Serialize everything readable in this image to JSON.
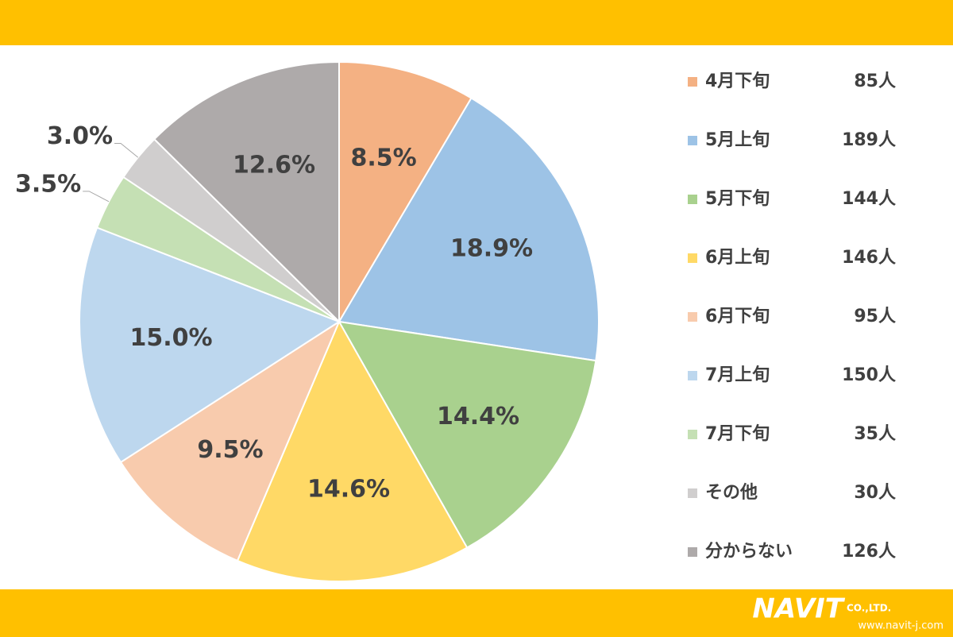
{
  "chart_data": {
    "type": "pie",
    "categories": [
      "4月下旬",
      "5月上旬",
      "5月下旬",
      "6月上旬",
      "6月下旬",
      "7月上旬",
      "7月下旬",
      "その他",
      "分からない"
    ],
    "values": [
      8.5,
      18.9,
      14.4,
      14.6,
      9.5,
      15.0,
      3.5,
      3.0,
      12.6
    ],
    "value_labels": [
      "8.5%",
      "18.9%",
      "14.4%",
      "14.6%",
      "9.5%",
      "15.0%",
      "3.5%",
      "3.0%",
      "12.6%"
    ],
    "counts": [
      85,
      189,
      144,
      146,
      95,
      150,
      35,
      30,
      126
    ],
    "count_labels": [
      "85人",
      "189人",
      "144人",
      "146人",
      "95人",
      "150人",
      "35人",
      "30人",
      "126人"
    ],
    "colors": [
      "#F4B183",
      "#9DC3E6",
      "#A9D18E",
      "#FFD966",
      "#F8CBAD",
      "#BDD7EE",
      "#C5E0B4",
      "#D0CECE",
      "#AEAAAA"
    ],
    "legend": "right"
  },
  "logo": {
    "name": "NAVIT",
    "suffix": "CO.,LTD.",
    "url": "www.navit-j.com"
  }
}
